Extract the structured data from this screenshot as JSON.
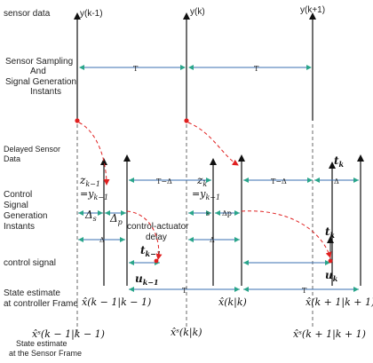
{
  "row_labels": {
    "sensor_data": "sensor data",
    "sampling_line1": "Sensor Sampling",
    "sampling_line2": "And",
    "sampling_line3": "Signal Generation",
    "sampling_line4": "Instants",
    "delayed_line1": "Delayed Sensor",
    "delayed_line2": "Data",
    "control_line1": "Control",
    "control_line2": "Signal",
    "control_line3": "Generation",
    "control_line4": "Instants",
    "control_signal": "control signal",
    "state_ctrl_line1": "State estimate",
    "state_ctrl_line2": "at controller Frame",
    "state_sensor_line1": "State estimate",
    "state_sensor_line2": "at the Sensor Frame"
  },
  "samples": {
    "y_km1": "y(k-1)",
    "y_k": "y(k)",
    "y_kp1": "y(k+1)",
    "T": "T"
  },
  "delayed": {
    "z_km1": "z",
    "z_km1_sub": "k−1",
    "eq_y_km1": "=y",
    "eq_y_km1_sub": "k−1",
    "z_k": "z",
    "z_k_sub": "k",
    "eq_y_k": "=y",
    "eq_y_k_sub": "k−1",
    "t_k_top": "t",
    "t_k_top_sub": "k"
  },
  "control": {
    "delta_s": "Δ",
    "delta_s_sub": "s",
    "delta_p": "Δ",
    "delta_p_sub": "p",
    "ca_delay_line1": "control-actuator",
    "ca_delay_line2": "delay",
    "t_km1": "t",
    "t_km1_sub": "k−1",
    "t_minus_delta_1": "T−Δ",
    "t_minus_delta_2": "T−Δ",
    "delta_mid": "Δ",
    "s_small": "s",
    "delta_p_small": "Δp",
    "delta_right": "Δ",
    "delta_lower_left": "Δ",
    "delta_lower_mid": "Δ",
    "t_k_lower": "t",
    "t_k_lower_sub": "k"
  },
  "signals": {
    "u_km1": "u",
    "u_km1_sub": "k−1",
    "u_k": "u",
    "u_k_sub": "k"
  },
  "estimates": {
    "T1": "T",
    "T2": "T",
    "xhat_km1": "x̂(k − 1|k − 1)",
    "xhat_k": "x̂(k|k)",
    "xhat_kp1": "x̂(k + 1|k + 1)",
    "xs_km1": "x̂ˢ(k − 1|k − 1)",
    "xs_k": "x̂ˢ(k|k)",
    "xs_kp1": "x̂ˢ(k + 1|k + 1)"
  },
  "colors": {
    "axis": "#111111",
    "interval_arrow": "#3a6fb0",
    "arrow_head": "#2aa58a",
    "delay_arrow": "#e02020",
    "dashed": "#444444"
  }
}
